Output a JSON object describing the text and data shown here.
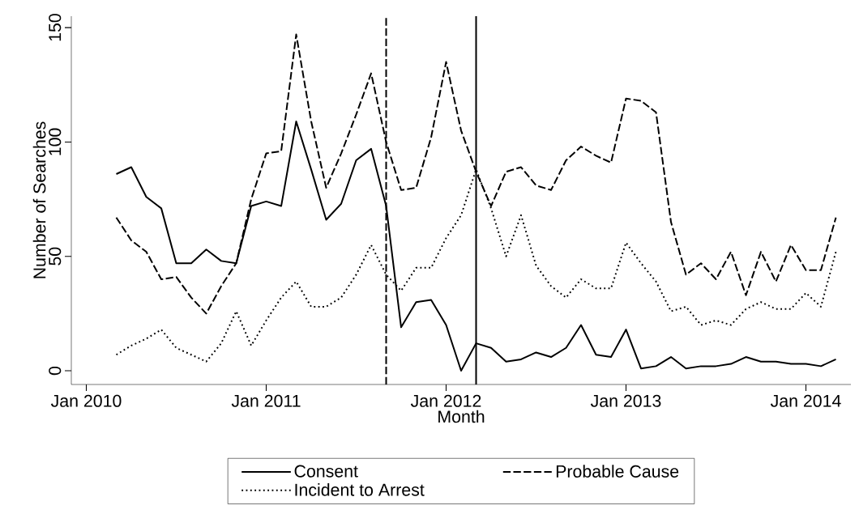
{
  "chart_data": {
    "type": "line",
    "xlabel": "Month",
    "ylabel": "Number of Searches",
    "x": [
      "2010-03",
      "2010-04",
      "2010-05",
      "2010-06",
      "2010-07",
      "2010-08",
      "2010-09",
      "2010-10",
      "2010-11",
      "2010-12",
      "2011-01",
      "2011-02",
      "2011-03",
      "2011-04",
      "2011-05",
      "2011-06",
      "2011-07",
      "2011-08",
      "2011-09",
      "2011-10",
      "2011-11",
      "2011-12",
      "2012-01",
      "2012-02",
      "2012-03",
      "2012-04",
      "2012-05",
      "2012-06",
      "2012-07",
      "2012-08",
      "2012-09",
      "2012-10",
      "2012-11",
      "2012-12",
      "2013-01",
      "2013-02",
      "2013-03",
      "2013-04",
      "2013-05",
      "2013-06",
      "2013-07",
      "2013-08",
      "2013-09",
      "2013-10",
      "2013-11",
      "2013-12",
      "2014-01",
      "2014-02",
      "2014-03"
    ],
    "series": [
      {
        "name": "Consent",
        "color": "#000000",
        "line_style": "solid",
        "values": [
          86,
          89,
          76,
          71,
          47,
          47,
          53,
          48,
          47,
          72,
          74,
          72,
          109,
          88,
          66,
          73,
          92,
          97,
          72,
          19,
          30,
          31,
          20,
          0,
          12,
          10,
          4,
          5,
          8,
          6,
          10,
          20,
          7,
          6,
          18,
          1,
          2,
          6,
          1,
          2,
          2,
          3,
          6,
          4,
          4,
          3,
          3,
          2,
          5
        ]
      },
      {
        "name": "Probable Cause",
        "color": "#000000",
        "line_style": "dashed",
        "values": [
          67,
          57,
          52,
          40,
          41,
          32,
          25,
          37,
          47,
          75,
          95,
          96,
          147,
          109,
          80,
          95,
          112,
          130,
          100,
          79,
          80,
          102,
          135,
          105,
          87,
          72,
          87,
          89,
          81,
          79,
          92,
          98,
          94,
          91,
          119,
          118,
          113,
          65,
          42,
          47,
          40,
          52,
          33,
          52,
          39,
          55,
          44,
          44,
          67
        ]
      },
      {
        "name": "Incident to Arrest",
        "color": "#000000",
        "line_style": "dotted",
        "values": [
          7,
          11,
          14,
          18,
          10,
          7,
          4,
          12,
          26,
          11,
          22,
          32,
          39,
          28,
          28,
          32,
          42,
          55,
          42,
          35,
          45,
          45,
          58,
          68,
          88,
          71,
          50,
          68,
          46,
          37,
          32,
          40,
          36,
          36,
          56,
          47,
          39,
          26,
          28,
          20,
          22,
          20,
          27,
          30,
          27,
          27,
          34,
          28,
          52
        ]
      }
    ],
    "xlim": [
      "2009-12",
      "2014-04"
    ],
    "xticks": [
      {
        "value": "2010-01",
        "label": "Jan 2010"
      },
      {
        "value": "2011-01",
        "label": "Jan 2011"
      },
      {
        "value": "2012-01",
        "label": "Jan 2012"
      },
      {
        "value": "2013-01",
        "label": "Jan 2013"
      },
      {
        "value": "2014-01",
        "label": "Jan 2014"
      }
    ],
    "ylim": [
      -6,
      155
    ],
    "yticks": [
      0,
      50,
      100,
      150
    ],
    "ref_lines": [
      {
        "axis": "x",
        "value": "2011-09",
        "color": "#000000",
        "line_style": "dashed"
      },
      {
        "axis": "x",
        "value": "2012-03",
        "color": "#000000",
        "line_style": "solid"
      }
    ],
    "grid": false,
    "legend": "bottom",
    "marker": "none"
  }
}
